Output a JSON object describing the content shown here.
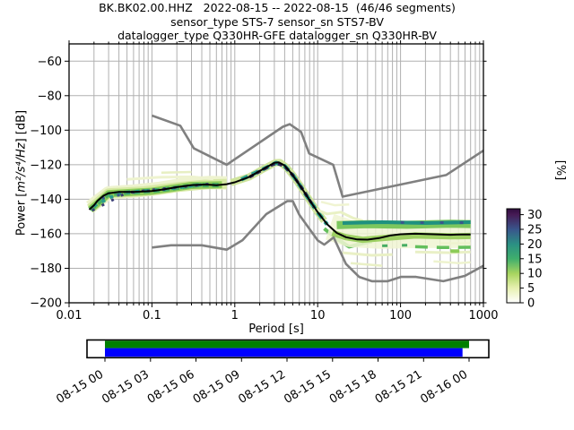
{
  "title": {
    "line1": "BK.BK02.00.HHZ   2022-08-15 -- 2022-08-15  (46/46 segments)",
    "line2": "sensor_type STS-7 sensor_sn STS7-BV",
    "line3": "datalogger_type Q330HR-GFE datalogger_sn Q330HR-BV"
  },
  "y_label": {
    "prefix": "Power [",
    "math": "m²/s⁴/Hz",
    "suffix": "] [dB]"
  },
  "chart_data": {
    "type": "heatmap",
    "description": "Probabilistic power spectral density (PPSD) of seismic channel BK.BK02.00.HHZ with Peterson NHNM/NLNM noise model bounds, mode line, percentage colorbar and data-coverage timeline",
    "x_axis": {
      "label": "Period [s]",
      "scale": "log",
      "range": [
        0.01,
        1000
      ],
      "ticks": [
        {
          "v": 0.01,
          "t": "0.01"
        },
        {
          "v": 0.1,
          "t": "0.1"
        },
        {
          "v": 1,
          "t": "1"
        },
        {
          "v": 10,
          "t": "10"
        },
        {
          "v": 100,
          "t": "100"
        },
        {
          "v": 1000,
          "t": "1000"
        }
      ]
    },
    "y_axis": {
      "label": "Power [m²/s⁴/Hz] [dB]",
      "range": [
        -200,
        -50
      ],
      "ticks": [
        {
          "v": -60,
          "t": "−60"
        },
        {
          "v": -80,
          "t": "−80"
        },
        {
          "v": -100,
          "t": "−100"
        },
        {
          "v": -120,
          "t": "−120"
        },
        {
          "v": -140,
          "t": "−140"
        },
        {
          "v": -160,
          "t": "−160"
        },
        {
          "v": -180,
          "t": "−180"
        },
        {
          "v": -200,
          "t": "−200"
        }
      ]
    },
    "colorbar": {
      "label": "[%]",
      "ticks": [
        0,
        5,
        10,
        15,
        20,
        25,
        30
      ],
      "max": 32,
      "gradient": [
        {
          "p": 0.0,
          "c": "#ffffff"
        },
        {
          "p": 0.16,
          "c": "#e6f0ae"
        },
        {
          "p": 0.31,
          "c": "#a8d55f"
        },
        {
          "p": 0.47,
          "c": "#3fae6d"
        },
        {
          "p": 0.62,
          "c": "#2b9183"
        },
        {
          "p": 0.78,
          "c": "#39568c"
        },
        {
          "p": 0.94,
          "c": "#461a54"
        },
        {
          "p": 1.0,
          "c": "#2e0d3e"
        }
      ]
    },
    "noise_models": {
      "color": "#808080",
      "nhnm": [
        [
          0.1,
          -91.5
        ],
        [
          0.22,
          -97.4
        ],
        [
          0.32,
          -110.5
        ],
        [
          0.8,
          -120
        ],
        [
          3.8,
          -98
        ],
        [
          4.6,
          -96.5
        ],
        [
          6.3,
          -101
        ],
        [
          7.9,
          -113.5
        ],
        [
          15.4,
          -120
        ],
        [
          20,
          -138.5
        ],
        [
          354.8,
          -126
        ],
        [
          1000,
          -111.8
        ]
      ],
      "nlnm": [
        [
          0.1,
          -168
        ],
        [
          0.17,
          -166.7
        ],
        [
          0.4,
          -166.7
        ],
        [
          0.8,
          -169.2
        ],
        [
          1.24,
          -163.7
        ],
        [
          2.4,
          -148.6
        ],
        [
          4.3,
          -141.1
        ],
        [
          5,
          -141.1
        ],
        [
          6,
          -149
        ],
        [
          10,
          -163.8
        ],
        [
          12,
          -166.3
        ],
        [
          15.6,
          -162.1
        ],
        [
          21.9,
          -177.5
        ],
        [
          31.6,
          -185
        ],
        [
          45,
          -187.5
        ],
        [
          70,
          -187.5
        ],
        [
          101,
          -185
        ],
        [
          154,
          -185
        ],
        [
          328,
          -187.5
        ],
        [
          600,
          -184.4
        ],
        [
          1000,
          -178.5
        ]
      ]
    },
    "mode_line": {
      "color": "#000000",
      "points": [
        [
          0.0175,
          -146
        ],
        [
          0.02,
          -143.5
        ],
        [
          0.022,
          -141
        ],
        [
          0.026,
          -138
        ],
        [
          0.03,
          -136.5
        ],
        [
          0.04,
          -135.8
        ],
        [
          0.06,
          -135.8
        ],
        [
          0.1,
          -135.3
        ],
        [
          0.14,
          -134.3
        ],
        [
          0.2,
          -133
        ],
        [
          0.3,
          -131.8
        ],
        [
          0.45,
          -131.5
        ],
        [
          0.6,
          -131.9
        ],
        [
          0.8,
          -131.3
        ],
        [
          1.0,
          -130.2
        ],
        [
          1.5,
          -127
        ],
        [
          2.2,
          -122.5
        ],
        [
          3.0,
          -118.9
        ],
        [
          3.4,
          -118.6
        ],
        [
          4.0,
          -120.5
        ],
        [
          5.0,
          -126
        ],
        [
          6.3,
          -133
        ],
        [
          8.0,
          -140.5
        ],
        [
          10,
          -147.5
        ],
        [
          13,
          -154.5
        ],
        [
          17,
          -159.5
        ],
        [
          22,
          -162
        ],
        [
          30,
          -163.3
        ],
        [
          40,
          -163.4
        ],
        [
          55,
          -162.5
        ],
        [
          75,
          -161
        ],
        [
          100,
          -160.3
        ],
        [
          150,
          -160
        ],
        [
          250,
          -160.3
        ],
        [
          400,
          -160.6
        ],
        [
          550,
          -160.4
        ],
        [
          700,
          -160.4
        ]
      ]
    },
    "density_streaks": [
      {
        "c": "#eef3cf",
        "w": 15,
        "pts": [
          [
            0.018,
            -144.5
          ],
          [
            0.03,
            -136.3
          ],
          [
            0.06,
            -135.3
          ],
          [
            0.12,
            -133.8
          ],
          [
            0.25,
            -131.3
          ],
          [
            0.5,
            -130.3
          ],
          [
            0.8,
            -130.6
          ]
        ]
      },
      {
        "c": "#d7e9a4",
        "w": 11,
        "pts": [
          [
            0.018,
            -145.5
          ],
          [
            0.03,
            -136.5
          ],
          [
            0.08,
            -135.4
          ],
          [
            0.2,
            -133
          ],
          [
            0.45,
            -131.4
          ],
          [
            0.8,
            -131
          ]
        ]
      },
      {
        "c": "#8ccb58",
        "w": 8,
        "pts": [
          [
            0.018,
            -146
          ],
          [
            0.03,
            -136.8
          ],
          [
            0.1,
            -135.4
          ],
          [
            0.3,
            -132
          ],
          [
            0.7,
            -131.6
          ]
        ]
      },
      {
        "c": "#47ad63",
        "w": 5,
        "d": "7 4",
        "pts": [
          [
            0.018,
            -146
          ],
          [
            0.03,
            -137
          ],
          [
            0.12,
            -134.8
          ],
          [
            0.35,
            -131.8
          ],
          [
            0.7,
            -131.8
          ]
        ]
      },
      {
        "c": "#2a9d8a",
        "w": 3.5,
        "d": "4 6",
        "pts": [
          [
            0.02,
            -144
          ],
          [
            0.04,
            -136.4
          ],
          [
            0.15,
            -134.2
          ],
          [
            0.4,
            -131.6
          ]
        ]
      },
      {
        "c": "#39568c",
        "w": 3,
        "d": "3 14",
        "pts": [
          [
            0.025,
            -139.5
          ],
          [
            0.06,
            -136
          ],
          [
            0.2,
            -133.6
          ]
        ]
      },
      {
        "c": "#3b3f77",
        "w": 3,
        "d": "3 9",
        "pts": [
          [
            0.019,
            -146.5
          ],
          [
            0.05,
            -136.1
          ],
          [
            0.2,
            -133.1
          ],
          [
            0.5,
            -131.1
          ]
        ]
      },
      {
        "c": "#eef3cf",
        "w": 3,
        "pts": [
          [
            0.05,
            -128.5
          ],
          [
            0.12,
            -127.3
          ],
          [
            0.3,
            -127
          ],
          [
            0.55,
            -128.2
          ]
        ]
      },
      {
        "c": "#e7efc2",
        "w": 2.5,
        "pts": [
          [
            0.13,
            -124.6
          ],
          [
            0.3,
            -124.2
          ]
        ]
      },
      {
        "c": "#cfe49c",
        "w": 8,
        "pts": [
          [
            0.9,
            -130.4
          ],
          [
            1.5,
            -127
          ],
          [
            2.2,
            -122.5
          ],
          [
            3.1,
            -118.8
          ],
          [
            3.5,
            -118.7
          ],
          [
            4.2,
            -121.5
          ],
          [
            5,
            -126
          ],
          [
            6.3,
            -133
          ],
          [
            8,
            -140.5
          ],
          [
            10,
            -147.5
          ],
          [
            12,
            -152.5
          ]
        ]
      },
      {
        "c": "#2a9d8a",
        "w": 4.5,
        "d": "8 5",
        "pts": [
          [
            1.2,
            -128.6
          ],
          [
            2.2,
            -122.6
          ],
          [
            3.16,
            -118.9
          ],
          [
            4,
            -120.8
          ],
          [
            5,
            -126
          ],
          [
            6.3,
            -133
          ],
          [
            8,
            -140.6
          ],
          [
            10,
            -147.6
          ],
          [
            13,
            -154.6
          ]
        ]
      },
      {
        "c": "#33265c",
        "w": 3.5,
        "d": "5 4",
        "pts": [
          [
            1.5,
            -127.2
          ],
          [
            2.5,
            -121.3
          ],
          [
            3.16,
            -119
          ],
          [
            4,
            -120.9
          ],
          [
            5.2,
            -127
          ],
          [
            7,
            -136.2
          ],
          [
            9,
            -144.5
          ]
        ]
      },
      {
        "c": "#63bf5c",
        "w": 4,
        "pts": [
          [
            12,
            -157
          ],
          [
            17,
            -163
          ],
          [
            24,
            -167.5
          ],
          [
            32,
            -166
          ],
          [
            45,
            -164.5
          ]
        ]
      },
      {
        "c": "#e9f1c4",
        "w": 3,
        "pts": [
          [
            9,
            -145.5
          ],
          [
            13,
            -148.5
          ],
          [
            19,
            -147.5
          ],
          [
            27,
            -151
          ],
          [
            35,
            -152.5
          ]
        ]
      },
      {
        "c": "#f0f4d2",
        "w": 2.5,
        "pts": [
          [
            11,
            -141.5
          ],
          [
            16,
            -143.5
          ],
          [
            24,
            -143
          ]
        ]
      },
      {
        "c": "#f0f4d2",
        "w": 30,
        "o": 0.85,
        "pts": [
          [
            14,
            -156
          ],
          [
            25,
            -160
          ],
          [
            60,
            -161
          ],
          [
            150,
            -160.5
          ],
          [
            400,
            -160.5
          ],
          [
            700,
            -160.5
          ]
        ]
      },
      {
        "c": "#e9f0c6",
        "w": 3,
        "pts": [
          [
            20,
            -171
          ],
          [
            45,
            -172.5
          ],
          [
            80,
            -172
          ]
        ]
      },
      {
        "c": "#e9f0c6",
        "w": 2.5,
        "pts": [
          [
            25,
            -177
          ],
          [
            60,
            -178.5
          ]
        ]
      },
      {
        "c": "#e9f0c6",
        "w": 3,
        "pts": [
          [
            150,
            -170.5
          ],
          [
            400,
            -171
          ],
          [
            700,
            -170.5
          ]
        ]
      },
      {
        "c": "#eef3cf",
        "w": 2.5,
        "pts": [
          [
            250,
            -176
          ],
          [
            500,
            -177
          ],
          [
            700,
            -176.5
          ]
        ]
      },
      {
        "c": "#eef3cf",
        "w": 2.5,
        "pts": [
          [
            300,
            -165.5
          ],
          [
            700,
            -165.5
          ]
        ]
      },
      {
        "c": "#7cc75e",
        "w": 9,
        "pts": [
          [
            17,
            -155
          ],
          [
            40,
            -154.5
          ],
          [
            120,
            -154.8
          ],
          [
            400,
            -154.2
          ],
          [
            700,
            -154.4
          ]
        ]
      },
      {
        "c": "#1f9180",
        "w": 4,
        "pts": [
          [
            20,
            -153.8
          ],
          [
            60,
            -153.3
          ],
          [
            200,
            -153.8
          ],
          [
            700,
            -153.3
          ]
        ]
      },
      {
        "c": "#39568c",
        "w": 3,
        "d": "4 18",
        "pts": [
          [
            100,
            -153.5
          ],
          [
            700,
            -153.6
          ]
        ]
      },
      {
        "c": "#9ed063",
        "w": 7,
        "pts": [
          [
            15,
            -159.5
          ],
          [
            22,
            -162
          ],
          [
            35,
            -163.5
          ],
          [
            60,
            -162.5
          ],
          [
            150,
            -161
          ],
          [
            400,
            -161.5
          ],
          [
            700,
            -161.3
          ]
        ]
      },
      {
        "c": "#63bf5c",
        "w": 3.5,
        "d": "14 10",
        "pts": [
          [
            150,
            -167.5
          ],
          [
            300,
            -168
          ],
          [
            700,
            -167.8
          ]
        ]
      },
      {
        "c": "#8ccb58",
        "w": 4,
        "d": "10 14",
        "pts": [
          [
            400,
            -170
          ],
          [
            700,
            -170.2
          ]
        ]
      },
      {
        "c": "#47ad63",
        "w": 3,
        "d": "6 16",
        "pts": [
          [
            60,
            -167
          ],
          [
            150,
            -166.5
          ]
        ]
      }
    ],
    "timeline": {
      "dates": [
        "08-15 00",
        "08-15 03",
        "08-15 06",
        "08-15 09",
        "08-15 12",
        "08-15 15",
        "08-15 18",
        "08-15 21",
        "08-16 00"
      ],
      "bars": [
        {
          "color": "#008000",
          "start": 0,
          "end": 1.0
        },
        {
          "color": "#0000ff",
          "start": 0,
          "end": 0.982
        }
      ]
    }
  }
}
